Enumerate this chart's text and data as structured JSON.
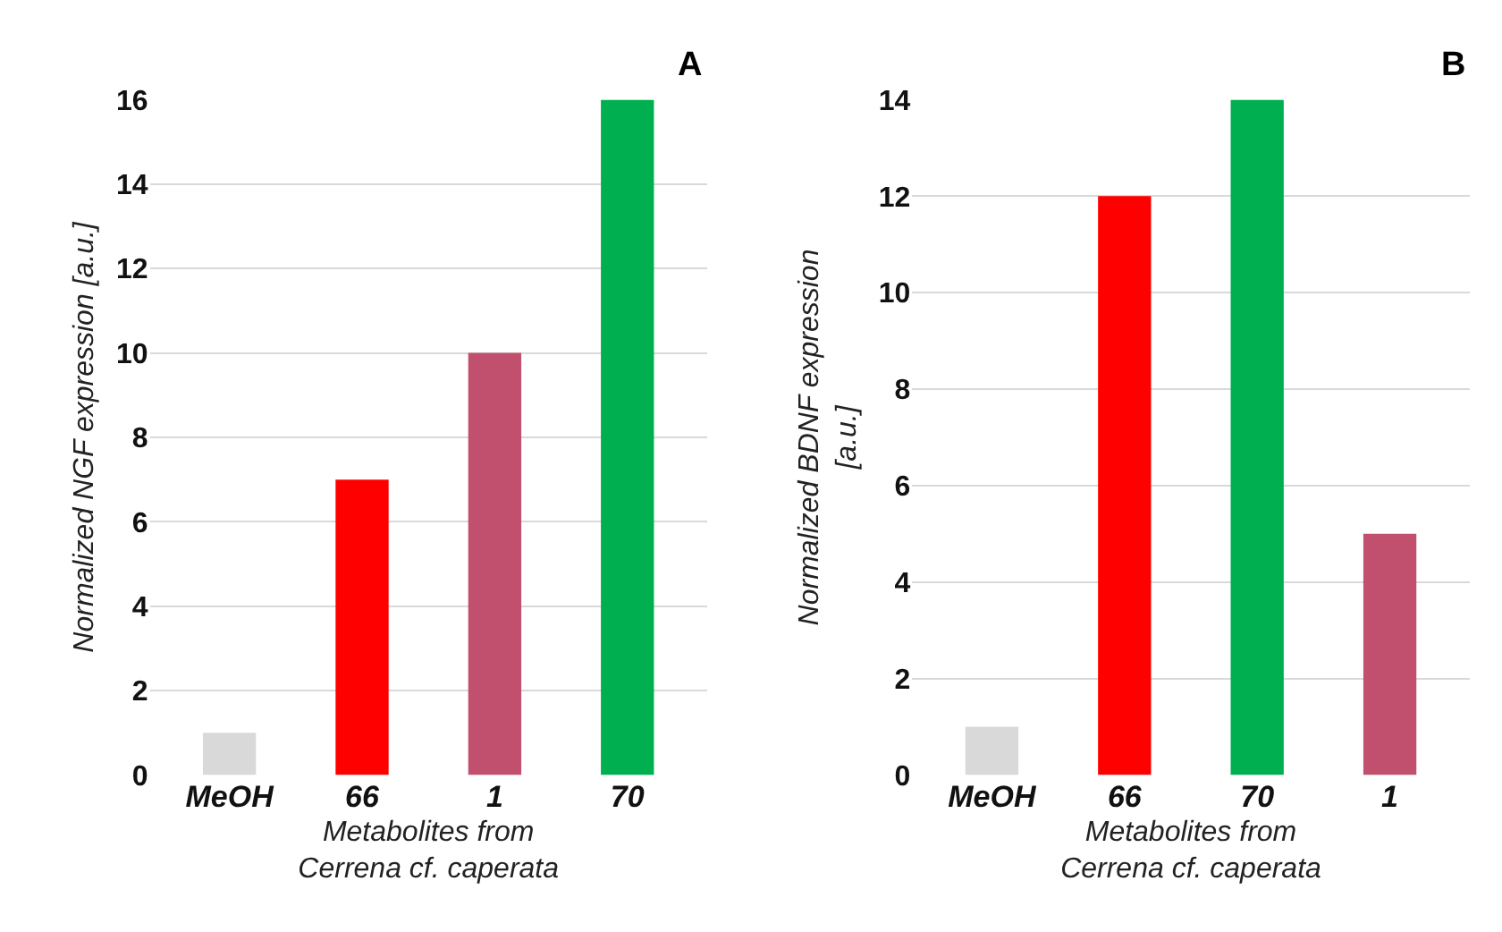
{
  "chart_data": [
    {
      "type": "bar",
      "title": "A",
      "categories": [
        "MeOH",
        "66",
        "1",
        "70"
      ],
      "values": [
        1,
        7,
        10,
        16
      ],
      "colors": [
        "#d9d9d9",
        "#ff0000",
        "#c0506e",
        "#00b050"
      ],
      "xlabel": "Metabolites from\nCerrena cf. caperata",
      "ylabel": "Normalized NGF expression [a.u.]",
      "ylim": [
        0,
        16
      ],
      "yticks": [
        0,
        2,
        4,
        6,
        8,
        10,
        12,
        14,
        16
      ],
      "grid": "y"
    },
    {
      "type": "bar",
      "title": "B",
      "categories": [
        "MeOH",
        "66",
        "70",
        "1"
      ],
      "values": [
        1,
        12,
        14,
        5
      ],
      "colors": [
        "#d9d9d9",
        "#ff0000",
        "#00b050",
        "#c0506e"
      ],
      "xlabel": "Metabolites from\nCerrena cf. caperata",
      "ylabel": "Normalized BDNF expression\n[a.u.]",
      "ylim": [
        0,
        14
      ],
      "yticks": [
        0,
        2,
        4,
        6,
        8,
        10,
        12,
        14
      ],
      "grid": "y"
    }
  ]
}
